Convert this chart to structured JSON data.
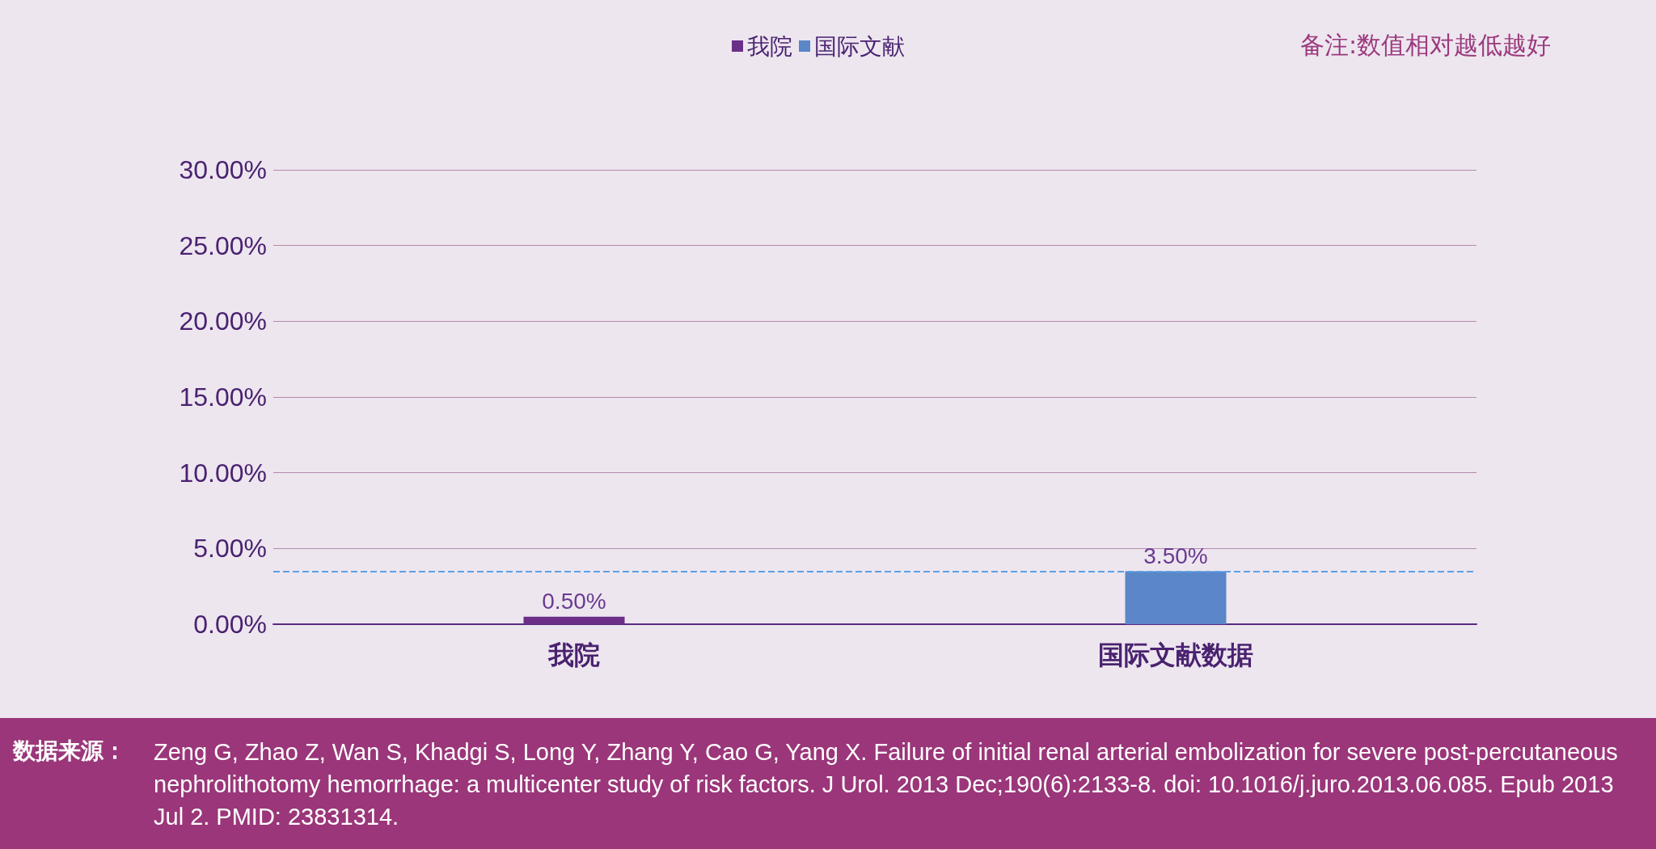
{
  "chart_data": {
    "type": "bar",
    "categories": [
      "我院",
      "国际文献数据"
    ],
    "series": [
      {
        "name": "我院",
        "color": "#6b2f88",
        "values": [
          0.5,
          null
        ],
        "value_labels": [
          "0.50%",
          null
        ]
      },
      {
        "name": "国际文献",
        "color": "#5b86c8",
        "values": [
          null,
          3.5
        ],
        "value_labels": [
          null,
          "3.50%"
        ]
      }
    ],
    "ylim": [
      0,
      30
    ],
    "yticks": [
      {
        "value": 0,
        "label": "0.00%"
      },
      {
        "value": 5,
        "label": "5.00%"
      },
      {
        "value": 10,
        "label": "10.00%"
      },
      {
        "value": 15,
        "label": "15.00%"
      },
      {
        "value": 20,
        "label": "20.00%"
      },
      {
        "value": 25,
        "label": "25.00%"
      },
      {
        "value": 30,
        "label": "30.00%"
      }
    ],
    "grid": "y",
    "legend": "top",
    "ref_lines": [
      {
        "axis": "y",
        "value": 3.5,
        "color": "#5aa0e8",
        "line_style": "dashed"
      }
    ],
    "annotations": [
      "备注:数值相对越低越好",
      "数据来源：",
      "Zeng G, Zhao Z, Wan S, Khadgi S, Long Y, Zhang Y, Cao G, Yang X. Failure of initial renal arterial embolization for severe post-percutaneous nephrolithotomy hemorrhage: a multicenter study of risk factors. J Urol. 2013 Dec;190(6):2133-8. doi: 10.1016/j.juro.2013.06.085. Epub 2013 Jul 2. PMID: 23831314."
    ]
  }
}
